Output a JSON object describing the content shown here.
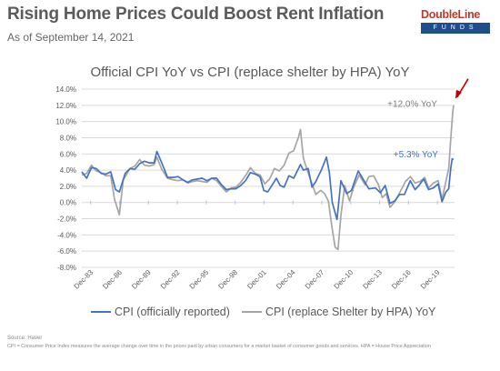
{
  "header": {
    "title": "Rising Home Prices Could Boost Rent Inflation",
    "subtitle": "As of September 14, 2021"
  },
  "logo": {
    "text": "DoubleLine",
    "subtext": "FUNDS"
  },
  "footer": {
    "source": "Source: Haver",
    "note": "CPI = Consumer Price Index measures the average change over time in the prices paid by urban consumers for a market basket of consumer goods and services. HPA = House Price Appreciation"
  },
  "colors": {
    "cpi": "#4472c4",
    "cpi_hpa": "#a5a5a5",
    "grid": "#d9d9d9",
    "arrow": "#c00000"
  },
  "chart_data": {
    "type": "line",
    "title": "Official CPI YoY vs CPI (replace shelter by HPA) YoY",
    "xlabel": "",
    "ylabel": "",
    "ylim": [
      -8,
      14
    ],
    "yticks": [
      "14.0%",
      "12.0%",
      "10.0%",
      "8.0%",
      "6.0%",
      "4.0%",
      "2.0%",
      "0.0%",
      "-2.0%",
      "-4.0%",
      "-6.0%",
      "-8.0%"
    ],
    "xlim": [
      1983,
      2021.7
    ],
    "xticks": [
      "Dec-83",
      "Dec-86",
      "Dec-89",
      "Dec-92",
      "Dec-95",
      "Dec-98",
      "Dec-01",
      "Dec-04",
      "Dec-07",
      "Dec-10",
      "Dec-13",
      "Dec-16",
      "Dec-19"
    ],
    "grid": true,
    "legend_position": "bottom",
    "series": [
      {
        "name": "CPI (officially reported)",
        "points": [
          [
            1983.0,
            3.8
          ],
          [
            1983.5,
            3.0
          ],
          [
            1984.0,
            4.3
          ],
          [
            1984.5,
            4.2
          ],
          [
            1985.0,
            3.6
          ],
          [
            1985.5,
            3.5
          ],
          [
            1986.0,
            3.8
          ],
          [
            1986.5,
            1.6
          ],
          [
            1986.9,
            1.3
          ],
          [
            1987.5,
            3.6
          ],
          [
            1988.0,
            4.2
          ],
          [
            1988.5,
            4.1
          ],
          [
            1989.0,
            4.8
          ],
          [
            1989.5,
            5.1
          ],
          [
            1990.0,
            4.9
          ],
          [
            1990.5,
            4.9
          ],
          [
            1990.8,
            6.3
          ],
          [
            1991.3,
            4.9
          ],
          [
            1991.9,
            3.1
          ],
          [
            1992.5,
            3.1
          ],
          [
            1993.0,
            3.2
          ],
          [
            1993.5,
            2.8
          ],
          [
            1994.0,
            2.5
          ],
          [
            1994.5,
            2.8
          ],
          [
            1995.0,
            2.9
          ],
          [
            1995.5,
            3.0
          ],
          [
            1996.0,
            2.7
          ],
          [
            1996.5,
            3.0
          ],
          [
            1997.0,
            3.0
          ],
          [
            1997.5,
            2.2
          ],
          [
            1998.0,
            1.6
          ],
          [
            1998.5,
            1.7
          ],
          [
            1999.0,
            1.7
          ],
          [
            1999.5,
            2.1
          ],
          [
            2000.0,
            2.7
          ],
          [
            2000.5,
            3.7
          ],
          [
            2001.0,
            3.5
          ],
          [
            2001.5,
            3.2
          ],
          [
            2001.9,
            1.5
          ],
          [
            2002.3,
            1.3
          ],
          [
            2002.9,
            2.4
          ],
          [
            2003.2,
            3.0
          ],
          [
            2003.6,
            2.1
          ],
          [
            2004.0,
            1.9
          ],
          [
            2004.5,
            3.3
          ],
          [
            2005.0,
            3.0
          ],
          [
            2005.7,
            4.7
          ],
          [
            2006.0,
            4.0
          ],
          [
            2006.5,
            4.2
          ],
          [
            2006.9,
            1.9
          ],
          [
            2007.3,
            2.6
          ],
          [
            2007.9,
            4.1
          ],
          [
            2008.4,
            5.6
          ],
          [
            2008.7,
            3.7
          ],
          [
            2009.0,
            0.0
          ],
          [
            2009.5,
            -2.1
          ],
          [
            2009.9,
            2.7
          ],
          [
            2010.5,
            1.1
          ],
          [
            2011.0,
            1.5
          ],
          [
            2011.7,
            3.9
          ],
          [
            2012.3,
            2.7
          ],
          [
            2012.8,
            1.7
          ],
          [
            2013.5,
            1.8
          ],
          [
            2014.0,
            1.2
          ],
          [
            2014.5,
            2.1
          ],
          [
            2015.0,
            -0.1
          ],
          [
            2015.5,
            0.2
          ],
          [
            2016.0,
            1.0
          ],
          [
            2016.5,
            1.0
          ],
          [
            2017.1,
            2.7
          ],
          [
            2017.6,
            1.6
          ],
          [
            2018.0,
            2.1
          ],
          [
            2018.5,
            2.9
          ],
          [
            2019.0,
            1.6
          ],
          [
            2019.5,
            1.8
          ],
          [
            2020.0,
            2.3
          ],
          [
            2020.4,
            0.1
          ],
          [
            2020.8,
            1.3
          ],
          [
            2021.1,
            1.7
          ],
          [
            2021.3,
            4.2
          ],
          [
            2021.45,
            5.4
          ],
          [
            2021.6,
            5.3
          ]
        ]
      },
      {
        "name": "CPI (replace Shelter by HPA) YoY",
        "points": [
          [
            1983.0,
            3.4
          ],
          [
            1983.5,
            3.6
          ],
          [
            1984.0,
            4.6
          ],
          [
            1984.5,
            3.9
          ],
          [
            1985.0,
            3.7
          ],
          [
            1985.5,
            3.3
          ],
          [
            1986.0,
            3.3
          ],
          [
            1986.4,
            0.4
          ],
          [
            1986.9,
            -1.5
          ],
          [
            1987.3,
            2.8
          ],
          [
            1988.0,
            4.2
          ],
          [
            1988.5,
            4.5
          ],
          [
            1989.0,
            5.3
          ],
          [
            1989.5,
            4.6
          ],
          [
            1990.0,
            4.5
          ],
          [
            1990.5,
            4.7
          ],
          [
            1990.8,
            5.6
          ],
          [
            1991.3,
            4.1
          ],
          [
            1991.9,
            3.0
          ],
          [
            1992.5,
            2.8
          ],
          [
            1993.0,
            2.7
          ],
          [
            1993.5,
            2.8
          ],
          [
            1994.0,
            2.4
          ],
          [
            1994.5,
            2.6
          ],
          [
            1995.0,
            2.7
          ],
          [
            1995.5,
            2.6
          ],
          [
            1996.0,
            2.5
          ],
          [
            1996.5,
            3.0
          ],
          [
            1997.0,
            2.7
          ],
          [
            1997.5,
            2.0
          ],
          [
            1998.0,
            1.3
          ],
          [
            1998.5,
            1.8
          ],
          [
            1999.0,
            1.9
          ],
          [
            1999.5,
            2.5
          ],
          [
            2000.0,
            3.3
          ],
          [
            2000.5,
            4.3
          ],
          [
            2001.0,
            3.6
          ],
          [
            2001.5,
            3.4
          ],
          [
            2002.0,
            2.3
          ],
          [
            2002.5,
            2.9
          ],
          [
            2003.0,
            4.2
          ],
          [
            2003.5,
            3.9
          ],
          [
            2004.0,
            4.6
          ],
          [
            2004.5,
            6.1
          ],
          [
            2005.0,
            6.4
          ],
          [
            2005.5,
            8.1
          ],
          [
            2005.7,
            9.0
          ],
          [
            2006.0,
            5.5
          ],
          [
            2006.4,
            4.0
          ],
          [
            2006.9,
            2.3
          ],
          [
            2007.3,
            1.0
          ],
          [
            2007.8,
            1.5
          ],
          [
            2008.2,
            1.1
          ],
          [
            2008.6,
            0.2
          ],
          [
            2009.0,
            -3.3
          ],
          [
            2009.3,
            -5.5
          ],
          [
            2009.6,
            -5.8
          ],
          [
            2009.9,
            -1.6
          ],
          [
            2010.3,
            2.1
          ],
          [
            2010.8,
            0.2
          ],
          [
            2011.2,
            1.8
          ],
          [
            2011.8,
            3.4
          ],
          [
            2012.4,
            2.2
          ],
          [
            2012.8,
            3.2
          ],
          [
            2013.3,
            3.3
          ],
          [
            2013.8,
            2.2
          ],
          [
            2014.2,
            0.6
          ],
          [
            2014.6,
            1.1
          ],
          [
            2015.0,
            -0.6
          ],
          [
            2015.5,
            0.1
          ],
          [
            2016.0,
            1.2
          ],
          [
            2016.6,
            2.6
          ],
          [
            2017.1,
            3.2
          ],
          [
            2017.6,
            2.4
          ],
          [
            2018.1,
            2.6
          ],
          [
            2018.6,
            3.1
          ],
          [
            2019.0,
            1.8
          ],
          [
            2019.5,
            2.4
          ],
          [
            2020.0,
            2.7
          ],
          [
            2020.4,
            0.4
          ],
          [
            2020.8,
            2.6
          ],
          [
            2021.1,
            4.2
          ],
          [
            2021.3,
            7.8
          ],
          [
            2021.5,
            11.0
          ],
          [
            2021.6,
            12.0
          ]
        ]
      }
    ],
    "annotations": [
      {
        "text": "+12.0% YoY",
        "x": 2019.9,
        "y": 11.8,
        "color": "#7f7f7f"
      },
      {
        "text": "+5.3% YoY",
        "x": 2020.0,
        "y": 5.6,
        "color": "#4472c4"
      }
    ]
  }
}
